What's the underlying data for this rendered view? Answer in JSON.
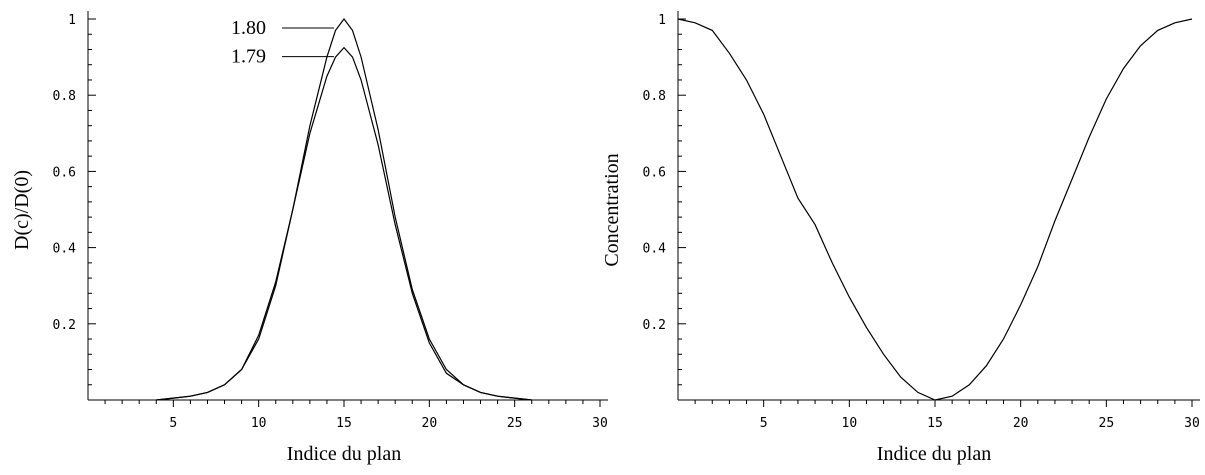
{
  "chart_data": [
    {
      "type": "line",
      "xlabel": "Indice du plan",
      "ylabel": "D(c)/D(0)",
      "xlim": [
        0,
        30
      ],
      "ylim": [
        0,
        1
      ],
      "xticks": [
        "5",
        "10",
        "15",
        "20",
        "25",
        "30"
      ],
      "yticks": [
        "0.2",
        "0.4",
        "0.6",
        "0.8",
        "1"
      ],
      "grid": false,
      "series": [
        {
          "name": "1.80",
          "x": [
            4,
            5,
            6,
            7,
            8,
            9,
            10,
            11,
            12,
            13,
            14,
            14.5,
            15,
            15.5,
            16,
            17,
            18,
            19,
            20,
            21,
            22,
            23,
            24,
            25,
            26
          ],
          "y": [
            0.0,
            0.005,
            0.01,
            0.02,
            0.04,
            0.08,
            0.16,
            0.3,
            0.5,
            0.72,
            0.9,
            0.97,
            1.0,
            0.97,
            0.9,
            0.71,
            0.48,
            0.29,
            0.16,
            0.08,
            0.04,
            0.02,
            0.01,
            0.005,
            0.0
          ]
        },
        {
          "name": "1.79",
          "x": [
            4,
            5,
            6,
            7,
            8,
            9,
            10,
            11,
            12,
            13,
            14,
            14.5,
            15,
            15.5,
            16,
            17,
            18,
            19,
            20,
            21,
            22,
            23,
            24,
            25,
            26
          ],
          "y": [
            0.0,
            0.005,
            0.01,
            0.02,
            0.04,
            0.08,
            0.17,
            0.31,
            0.5,
            0.7,
            0.85,
            0.9,
            0.925,
            0.9,
            0.84,
            0.67,
            0.46,
            0.28,
            0.15,
            0.07,
            0.04,
            0.02,
            0.01,
            0.005,
            0.0
          ]
        }
      ]
    },
    {
      "type": "line",
      "xlabel": "Indice du plan",
      "ylabel": "Concentration",
      "xlim": [
        0,
        30
      ],
      "ylim": [
        0,
        1
      ],
      "xticks": [
        "5",
        "10",
        "15",
        "20",
        "25",
        "30"
      ],
      "yticks": [
        "0.2",
        "0.4",
        "0.6",
        "0.8",
        "1"
      ],
      "grid": false,
      "series": [
        {
          "x": [
            0,
            1,
            2,
            3,
            4,
            5,
            6,
            7,
            8,
            9,
            10,
            11,
            12,
            13,
            14,
            15,
            16,
            17,
            18,
            19,
            20,
            21,
            22,
            23,
            24,
            25,
            26,
            27,
            28,
            29,
            30
          ],
          "y": [
            1.0,
            0.99,
            0.97,
            0.91,
            0.84,
            0.75,
            0.64,
            0.53,
            0.46,
            0.36,
            0.27,
            0.19,
            0.12,
            0.06,
            0.02,
            0.0,
            0.01,
            0.04,
            0.09,
            0.16,
            0.25,
            0.35,
            0.47,
            0.58,
            0.69,
            0.79,
            0.87,
            0.93,
            0.97,
            0.99,
            1.0
          ]
        }
      ]
    }
  ]
}
